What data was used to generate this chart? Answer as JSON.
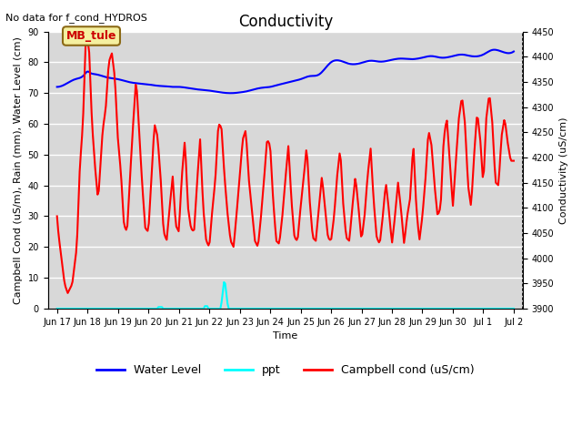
{
  "title": "Conductivity",
  "top_left_text": "No data for f_cond_HYDROS",
  "ylabel_left": "Campbell Cond (uS/m), Rain (mm), Water Level (cm)",
  "ylabel_right": "Conductivity (uS/cm)",
  "xlabel": "Time",
  "ylim_left": [
    0,
    90
  ],
  "ylim_right": [
    3900,
    4450
  ],
  "background_color": "#ffffff",
  "plot_bg_color": "#d8d8d8",
  "grid_color": "#ffffff",
  "x_tick_labels": [
    "Jun 17",
    "Jun 18",
    "Jun 19",
    "Jun 20",
    "Jun 21",
    "Jun 22",
    "Jun 23",
    "Jun 24",
    "Jun 25",
    "Jun 26",
    "Jun 27",
    "Jun 28",
    "Jun 29",
    "Jun 30",
    "Jul 1",
    "Jul 2"
  ],
  "x_tick_positions": [
    0,
    1,
    2,
    3,
    4,
    5,
    6,
    7,
    8,
    9,
    10,
    11,
    12,
    13,
    14,
    15
  ],
  "xlim": [
    -0.3,
    15.3
  ],
  "annotation_text": "MB_tule",
  "right_spine_dotted": true,
  "wl_color": "blue",
  "ppt_color": "cyan",
  "campbell_color": "red",
  "title_fontsize": 12,
  "axis_fontsize": 8,
  "tick_fontsize": 7,
  "legend_fontsize": 9
}
